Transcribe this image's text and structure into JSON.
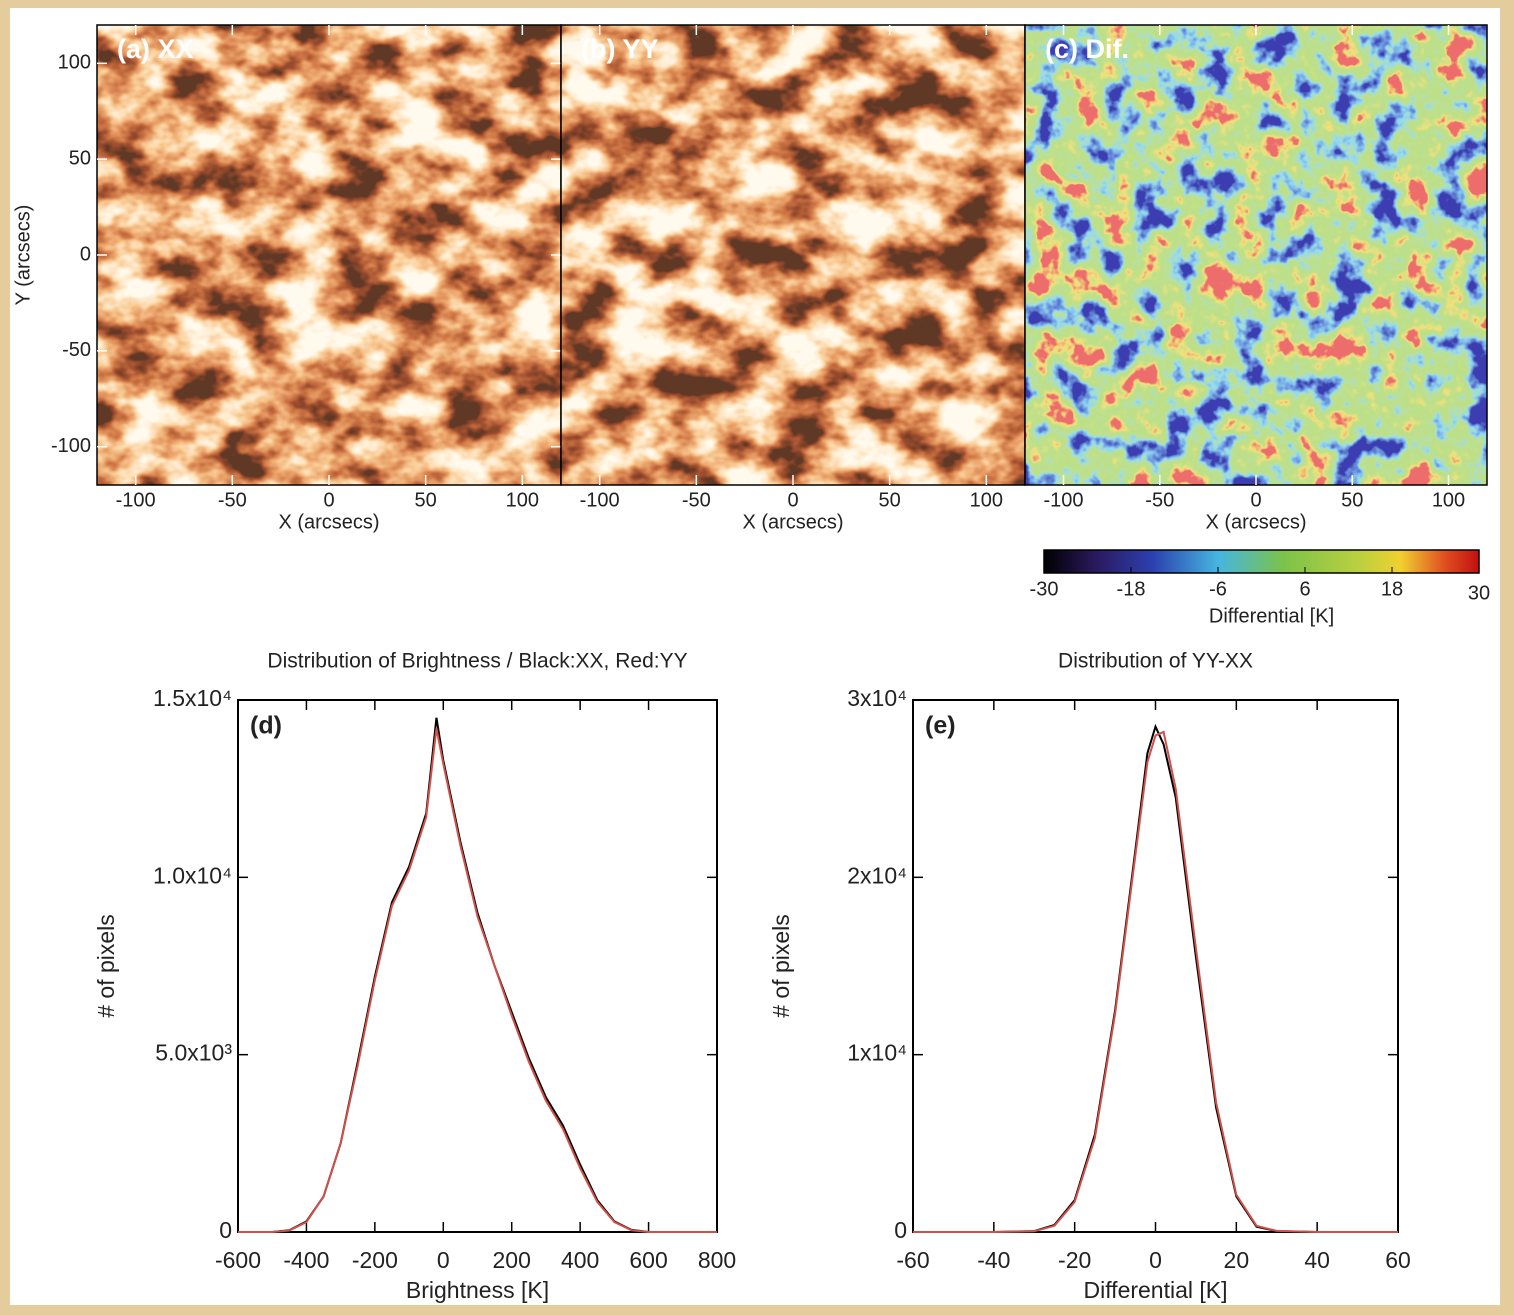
{
  "chart_data": [
    {
      "type": "image",
      "colormap": "heat",
      "title": "(a) XX",
      "xlabel": "X (arcsecs)",
      "ylabel": "Y (arcsecs)",
      "xlim": [
        -120,
        120
      ],
      "xticks": [
        -100,
        -50,
        0,
        50,
        100
      ],
      "ylim": [
        -120,
        120
      ],
      "yticks": [
        -100,
        -50,
        0,
        50,
        100
      ]
    },
    {
      "type": "image",
      "colormap": "heat",
      "title": "(b) YY",
      "xlabel": "X (arcsecs)",
      "xlim": [
        -120,
        120
      ],
      "xticks": [
        -100,
        -50,
        0,
        50,
        100
      ]
    },
    {
      "type": "image",
      "colormap": "jet",
      "title": "(c) Dif.",
      "xlabel": "X (arcsecs)",
      "xlim": [
        -120,
        120
      ],
      "xticks": [
        -100,
        -50,
        0,
        50,
        100
      ],
      "colorbar": {
        "label": "Differential [K]",
        "lim": [
          -30,
          30
        ],
        "ticks": [
          -30,
          -18,
          -6,
          6,
          18,
          30
        ]
      }
    },
    {
      "type": "line",
      "title": "Distribution of Brightness / Black:XX, Red:YY",
      "annotation": "(d)",
      "xlabel": "Brightness [K]",
      "ylabel": "# of pixels",
      "xlim": [
        -600,
        800
      ],
      "xticks": [
        -600,
        -400,
        -200,
        0,
        200,
        400,
        600,
        800
      ],
      "ylim": [
        0,
        15000
      ],
      "yticks": [
        0,
        {
          "value": 5000,
          "label": "5.0x10³"
        },
        {
          "value": 10000,
          "label": "1.0x10⁴"
        },
        {
          "value": 15000,
          "label": "1.5x10⁴"
        }
      ],
      "x": [
        -600,
        -500,
        -450,
        -400,
        -350,
        -300,
        -250,
        -200,
        -150,
        -100,
        -50,
        -20,
        0,
        50,
        100,
        150,
        200,
        250,
        300,
        350,
        400,
        450,
        500,
        550,
        600,
        700,
        800
      ],
      "series": [
        {
          "color": "#000000",
          "values": [
            0,
            0,
            50,
            300,
            1000,
            2500,
            4800,
            7200,
            9300,
            10300,
            11800,
            14500,
            13300,
            11000,
            9000,
            7500,
            6200,
            4900,
            3800,
            3000,
            1900,
            900,
            300,
            60,
            0,
            0,
            0
          ]
        },
        {
          "color": "#d0504a",
          "values": [
            0,
            0,
            40,
            280,
            1000,
            2500,
            4700,
            7100,
            9200,
            10200,
            11700,
            14200,
            13200,
            10900,
            8900,
            7500,
            6100,
            4800,
            3700,
            2900,
            1800,
            850,
            280,
            50,
            0,
            0,
            0
          ]
        }
      ]
    },
    {
      "type": "line",
      "title": "Distribution of YY-XX",
      "annotation": "(e)",
      "xlabel": "Differential [K]",
      "ylabel": "# of pixels",
      "xlim": [
        -60,
        60
      ],
      "xticks": [
        -60,
        -40,
        -20,
        0,
        20,
        40,
        60
      ],
      "ylim": [
        0,
        30000
      ],
      "yticks": [
        0,
        {
          "value": 10000,
          "label": "1x10⁴"
        },
        {
          "value": 20000,
          "label": "2x10⁴"
        },
        {
          "value": 30000,
          "label": "3x10⁴"
        }
      ],
      "x": [
        -60,
        -40,
        -30,
        -25,
        -20,
        -15,
        -10,
        -5,
        -2,
        0,
        2,
        5,
        10,
        15,
        20,
        25,
        30,
        40,
        60
      ],
      "series": [
        {
          "color": "#000000",
          "values": [
            0,
            0,
            50,
            400,
            1800,
            5500,
            12500,
            21500,
            27000,
            28500,
            27500,
            24500,
            15500,
            7000,
            2000,
            300,
            50,
            0,
            0
          ]
        },
        {
          "color": "#d0504a",
          "values": [
            0,
            0,
            40,
            350,
            1700,
            5300,
            12300,
            21200,
            26500,
            28000,
            28200,
            25000,
            16000,
            7300,
            2100,
            350,
            60,
            0,
            0
          ]
        }
      ]
    }
  ]
}
